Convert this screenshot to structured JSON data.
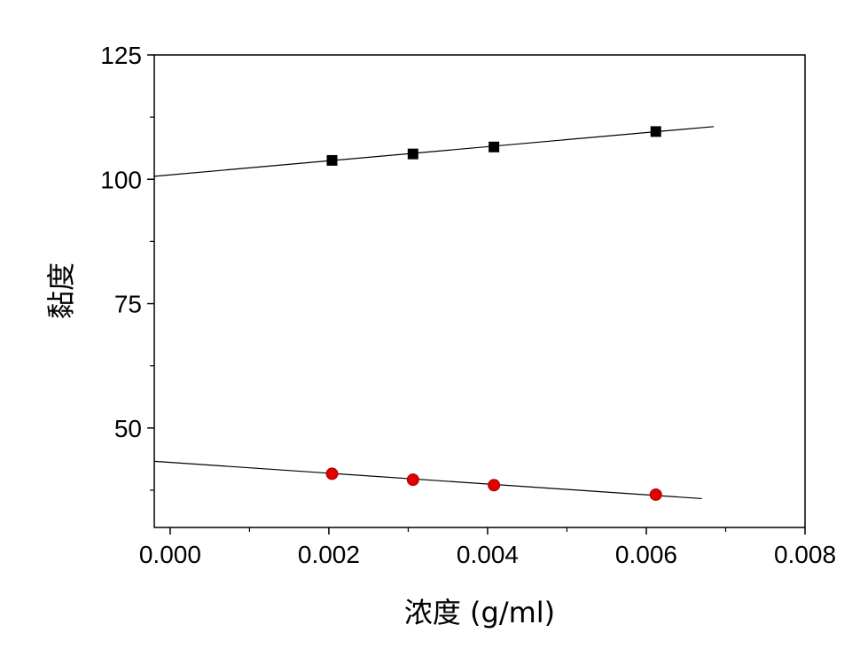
{
  "chart_data": {
    "type": "scatter",
    "title": "",
    "xlabel": "浓度 (g/ml)",
    "ylabel": "黏度",
    "xlim": [
      -0.0002,
      0.008
    ],
    "ylim": [
      30,
      125
    ],
    "x_ticks": [
      "0.000",
      "0.002",
      "0.004",
      "0.006",
      "0.008"
    ],
    "y_ticks": [
      "50",
      "75",
      "100",
      "125"
    ],
    "grid": false,
    "legend": "none",
    "series": [
      {
        "marker": "square",
        "color": "#000000",
        "x": [
          0.00204,
          0.00306,
          0.00408,
          0.00612
        ],
        "y": [
          103.8,
          105.1,
          106.5,
          109.6
        ],
        "fit": {
          "x": [
            -0.0002,
            0.00685
          ],
          "y": [
            100.6,
            110.6
          ]
        }
      },
      {
        "marker": "circle",
        "color": "#e00000",
        "x": [
          0.00204,
          0.00306,
          0.00408,
          0.00612
        ],
        "y": [
          40.8,
          39.6,
          38.5,
          36.6
        ],
        "fit": {
          "x": [
            -0.0002,
            0.0067
          ],
          "y": [
            43.3,
            35.8
          ]
        }
      }
    ]
  }
}
